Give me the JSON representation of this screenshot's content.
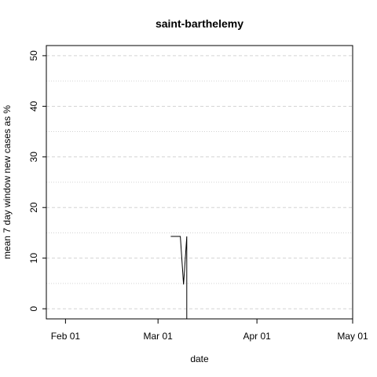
{
  "chart_data": {
    "type": "line",
    "title": "saint-barthelemy",
    "xlabel": "date",
    "ylabel": "mean  7  day window new cases as %",
    "x_ticks": [
      {
        "date": "2020-02-01",
        "label": "Feb 01"
      },
      {
        "date": "2020-03-01",
        "label": "Mar 01"
      },
      {
        "date": "2020-04-01",
        "label": "Apr 01"
      },
      {
        "date": "2020-05-01",
        "label": "May 01"
      }
    ],
    "y_ticks": [
      0,
      10,
      20,
      30,
      40,
      50
    ],
    "xlim": [
      "2020-01-26",
      "2020-05-01"
    ],
    "ylim": [
      -2,
      52
    ],
    "grid": {
      "major": "dashed",
      "minor": "dotted",
      "minor_step": 5
    },
    "series": [
      {
        "points": [
          {
            "x": "2020-01-26",
            "y": 51
          },
          {
            "x": "2020-01-26",
            "y": -2
          }
        ]
      },
      {
        "points": [
          {
            "x": "2020-03-05",
            "y": 14.3
          },
          {
            "x": "2020-03-08",
            "y": 14.3
          },
          {
            "x": "2020-03-09",
            "y": 4.8
          },
          {
            "x": "2020-03-10",
            "y": 14.3
          },
          {
            "x": "2020-03-10",
            "y": -2
          }
        ]
      }
    ],
    "colors": {
      "line": "#000000",
      "grid": "#d3d3d3",
      "box": "#000000"
    }
  }
}
